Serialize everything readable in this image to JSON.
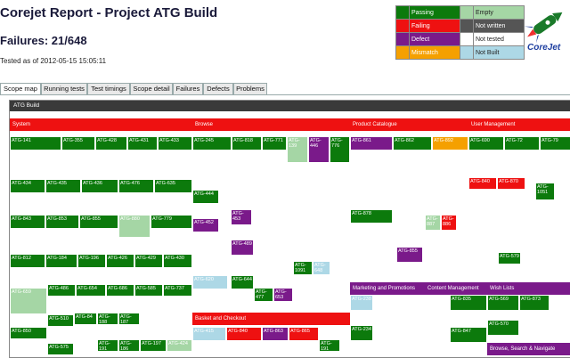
{
  "header": {
    "title": "Corejet Report - Project ATG Build",
    "failures": "Failures: 21/648",
    "tested": "Tested as of 2012-05-15 15:05:11"
  },
  "legend": [
    {
      "label": "Passing",
      "color": "#0c7a0c"
    },
    {
      "label": "Empty",
      "color": "#a5d6a5"
    },
    {
      "label": "Failing",
      "color": "#ee1111"
    },
    {
      "label": "Not written",
      "color": "#555555"
    },
    {
      "label": "Defect",
      "color": "#7a1a8a"
    },
    {
      "label": "Not tested",
      "color": "#ffffff"
    },
    {
      "label": "Mismatch",
      "color": "#f5a000"
    },
    {
      "label": "Not Built",
      "color": "#add8e6"
    }
  ],
  "logo": {
    "text": "CoreJet",
    "icon": "corejet-rocket-logo"
  },
  "tabs": [
    {
      "label": "Scope map",
      "active": true
    },
    {
      "label": "Running tests",
      "active": false
    },
    {
      "label": "Test timings",
      "active": false
    },
    {
      "label": "Scope detail",
      "active": false
    },
    {
      "label": "Failures",
      "active": false
    },
    {
      "label": "Defects",
      "active": false
    },
    {
      "label": "Problems",
      "active": false
    }
  ],
  "scope_map": {
    "root": "ATG Build",
    "sections": [
      {
        "label": "System",
        "color": "#ee1111"
      },
      {
        "label": "Browse",
        "color": "#ee1111"
      },
      {
        "label": "Product Catalogue",
        "color": "#ee1111"
      },
      {
        "label": "User Management",
        "color": "#ee1111"
      },
      {
        "label": "Marketing and Promotions",
        "color": "#7a1a8a"
      },
      {
        "label": "Content Management",
        "color": "#7a1a8a"
      },
      {
        "label": "Wish Lists",
        "color": "#7a1a8a"
      },
      {
        "label": "Basket and Checkout",
        "color": "#ee1111"
      },
      {
        "label": "Browse, Search & Navigate",
        "color": "#7a1a8a"
      }
    ],
    "cells": [
      {
        "label": "ATG-141",
        "color": "#0c7a0c"
      },
      {
        "label": "ATG-355",
        "color": "#0c7a0c"
      },
      {
        "label": "ATG-428",
        "color": "#0c7a0c"
      },
      {
        "label": "ATG-431",
        "color": "#0c7a0c"
      },
      {
        "label": "ATG-433",
        "color": "#0c7a0c"
      },
      {
        "label": "ATG-434",
        "color": "#0c7a0c"
      },
      {
        "label": "ATG-435",
        "color": "#0c7a0c"
      },
      {
        "label": "ATG-436",
        "color": "#0c7a0c"
      },
      {
        "label": "ATG-476",
        "color": "#0c7a0c"
      },
      {
        "label": "ATG-635",
        "color": "#0c7a0c"
      },
      {
        "label": "ATG-843",
        "color": "#0c7a0c"
      },
      {
        "label": "ATG-853",
        "color": "#0c7a0c"
      },
      {
        "label": "ATG-855",
        "color": "#0c7a0c"
      },
      {
        "label": "ATG-880",
        "color": "#a5d6a5"
      },
      {
        "label": "ATG-779",
        "color": "#0c7a0c"
      },
      {
        "label": "ATG-812",
        "color": "#0c7a0c"
      },
      {
        "label": "ATG-184",
        "color": "#0c7a0c"
      },
      {
        "label": "ATG-196",
        "color": "#0c7a0c"
      },
      {
        "label": "ATG-426",
        "color": "#0c7a0c"
      },
      {
        "label": "ATG-429",
        "color": "#0c7a0c"
      },
      {
        "label": "ATG-430",
        "color": "#0c7a0c"
      },
      {
        "label": "ATG-659",
        "color": "#a5d6a5"
      },
      {
        "label": "ATG-486",
        "color": "#0c7a0c"
      },
      {
        "label": "ATG-654",
        "color": "#0c7a0c"
      },
      {
        "label": "ATG-686",
        "color": "#0c7a0c"
      },
      {
        "label": "ATG-585",
        "color": "#0c7a0c"
      },
      {
        "label": "ATG-737",
        "color": "#0c7a0c"
      },
      {
        "label": "ATG-510",
        "color": "#0c7a0c"
      },
      {
        "label": "ATG-84",
        "color": "#0c7a0c"
      },
      {
        "label": "ATG-188",
        "color": "#0c7a0c"
      },
      {
        "label": "ATG-187",
        "color": "#0c7a0c"
      },
      {
        "label": "ATG-850",
        "color": "#0c7a0c"
      },
      {
        "label": "ATG-191",
        "color": "#0c7a0c"
      },
      {
        "label": "ATG-186",
        "color": "#0c7a0c"
      },
      {
        "label": "ATG-197",
        "color": "#0c7a0c"
      },
      {
        "label": "ATG-424",
        "color": "#a5d6a5"
      },
      {
        "label": "ATG-575",
        "color": "#0c7a0c"
      },
      {
        "label": "ATG-245",
        "color": "#0c7a0c"
      },
      {
        "label": "ATG-818",
        "color": "#0c7a0c"
      },
      {
        "label": "ATG-771",
        "color": "#0c7a0c"
      },
      {
        "label": "ATG-139",
        "color": "#a5d6a5"
      },
      {
        "label": "ATG-446",
        "color": "#7a1a8a"
      },
      {
        "label": "ATG-776",
        "color": "#0c7a0c"
      },
      {
        "label": "ATG-444",
        "color": "#0c7a0c"
      },
      {
        "label": "ATG-453",
        "color": "#7a1a8a"
      },
      {
        "label": "ATG-452",
        "color": "#7a1a8a"
      },
      {
        "label": "ATG-489",
        "color": "#7a1a8a"
      },
      {
        "label": "ATG-620",
        "color": "#add8e6"
      },
      {
        "label": "ATG-644",
        "color": "#0c7a0c"
      },
      {
        "label": "ATG-477",
        "color": "#0c7a0c"
      },
      {
        "label": "ATG-653",
        "color": "#7a1a8a"
      },
      {
        "label": "ATG-1091",
        "color": "#0c7a0c"
      },
      {
        "label": "ATG-648",
        "color": "#add8e6"
      },
      {
        "label": "ATG-861",
        "color": "#7a1a8a"
      },
      {
        "label": "ATG-862",
        "color": "#0c7a0c"
      },
      {
        "label": "ATG-892",
        "color": "#f5a000"
      },
      {
        "label": "ATG-878",
        "color": "#0c7a0c"
      },
      {
        "label": "ATG-887",
        "color": "#a5d6a5"
      },
      {
        "label": "ATG-886",
        "color": "#ee1111"
      },
      {
        "label": "ATG-855",
        "color": "#7a1a8a"
      },
      {
        "label": "ATG-690",
        "color": "#0c7a0c"
      },
      {
        "label": "ATG-72",
        "color": "#0c7a0c"
      },
      {
        "label": "ATG-79",
        "color": "#0c7a0c"
      },
      {
        "label": "ATG-840",
        "color": "#ee1111"
      },
      {
        "label": "ATG-870",
        "color": "#ee1111"
      },
      {
        "label": "ATG-1051",
        "color": "#0c7a0c"
      },
      {
        "label": "ATG-579",
        "color": "#0c7a0c"
      },
      {
        "label": "ATG-238",
        "color": "#add8e6"
      },
      {
        "label": "ATG-234",
        "color": "#0c7a0c"
      },
      {
        "label": "ATG-835",
        "color": "#0c7a0c"
      },
      {
        "label": "ATG-847",
        "color": "#0c7a0c"
      },
      {
        "label": "ATG-569",
        "color": "#0c7a0c"
      },
      {
        "label": "ATG-873",
        "color": "#0c7a0c"
      },
      {
        "label": "ATG-570",
        "color": "#0c7a0c"
      },
      {
        "label": "ATG-415",
        "color": "#add8e6"
      },
      {
        "label": "ATG-840",
        "color": "#ee1111"
      },
      {
        "label": "ATG-863",
        "color": "#7a1a8a"
      },
      {
        "label": "ATG-865",
        "color": "#ee1111"
      },
      {
        "label": "ATG-191",
        "color": "#0c7a0c"
      }
    ]
  }
}
